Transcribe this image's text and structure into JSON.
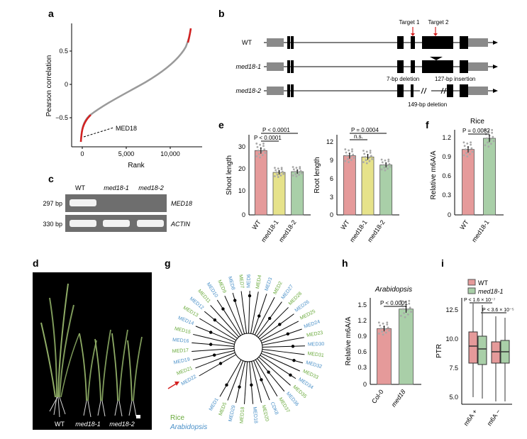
{
  "panels": {
    "a": {
      "label": "a",
      "ylabel": "Pearson correlation",
      "xlabel": "Rank",
      "xticks": [
        "0",
        "5,000",
        "10,000"
      ],
      "yticks": [
        "0.5",
        "0",
        "−0.5"
      ],
      "annotation": "MED18"
    },
    "b": {
      "label": "b",
      "rows": [
        "WT",
        "med18-1",
        "med18-2"
      ],
      "target1": "Target 1",
      "target2": "Target 2",
      "ann_del7": "7-bp deletion",
      "ann_ins127": "127-bp insertion",
      "ann_del149": "149-bp deletion"
    },
    "c": {
      "label": "c",
      "lanes": [
        "WT",
        "med18-1",
        "med18-2"
      ],
      "sizes": [
        "297 bp",
        "330 bp"
      ],
      "genes": [
        "MED18",
        "ACTIN"
      ]
    },
    "d": {
      "label": "d",
      "caption": [
        "WT",
        "med18-1",
        "med18-2"
      ]
    },
    "e": {
      "label": "e",
      "shoot": {
        "ylabel": "Shoot length",
        "yticks": [
          "30",
          "20",
          "10",
          "0"
        ],
        "pvals": [
          "P < 0.0001",
          "P < 0.0001"
        ]
      },
      "root": {
        "ylabel": "Root length",
        "yticks": [
          "12",
          "9",
          "6",
          "3",
          "0"
        ],
        "pvals": [
          "P = 0.0004",
          "n.s."
        ]
      },
      "groups": [
        "WT",
        "med18-1",
        "med18-2"
      ]
    },
    "f": {
      "label": "f",
      "title": "Rice",
      "ylabel": "Relative m6A/A",
      "yticks": [
        "1.2",
        "0.9",
        "0.6",
        "0.3",
        "0"
      ],
      "pval": "P = 0.0082",
      "groups": [
        "WT",
        "med18-1"
      ]
    },
    "g": {
      "label": "g",
      "legend_rice": "Rice",
      "legend_arab": "Arabidopsis",
      "leaf_labels": [
        "MED22",
        "MED21",
        "MED19",
        "MED17",
        "MED16",
        "MED15",
        "MED14",
        "MED13",
        "MED12",
        "MED11",
        "MED10",
        "MED9",
        "MED8",
        "MED7",
        "MED6",
        "MED4",
        "MED3",
        "MED2",
        "MED27",
        "MED28",
        "MED26",
        "MED25",
        "MED24",
        "MED23",
        "MED30",
        "MED31",
        "MED32",
        "MED33",
        "MED34",
        "MED35",
        "MED36",
        "MED37",
        "CDK8",
        "MED20",
        "MED18",
        "MED18",
        "MED29",
        "MED5",
        "MED1"
      ]
    },
    "h": {
      "label": "h",
      "title": "Arabidopsis",
      "ylabel": "Relative m6A/A",
      "yticks": [
        "1.5",
        "1.2",
        "0.9",
        "0.6",
        "0.3",
        "0"
      ],
      "pval": "P < 0.0001",
      "groups": [
        "Col-0",
        "med18"
      ]
    },
    "i": {
      "label": "i",
      "legend": [
        "WT",
        "med18-1"
      ],
      "ylabel": "PTR",
      "yticks": [
        "12.5",
        "10.0",
        "7.5",
        "5.0"
      ],
      "pvals": [
        "P < 1.6 × 10⁻⁷",
        "P < 3.6 × 10⁻⁵"
      ],
      "groups": [
        "m6A +",
        "m6A −"
      ]
    }
  },
  "colors": {
    "wt": "#e59a9a",
    "med18_1": "#e6e28a",
    "med18_2": "#a9cfa8",
    "rice": "#6aaa3c",
    "arabidopsis": "#4a90c8",
    "curve": "#9a9a9a",
    "curve_highlight": "#d42020"
  },
  "chart_data": [
    {
      "panel": "e-shoot",
      "type": "bar",
      "categories": [
        "WT",
        "med18-1",
        "med18-2"
      ],
      "values": [
        26.5,
        17.5,
        17.8
      ],
      "ylabel": "Shoot length",
      "ylim": [
        0,
        33
      ]
    },
    {
      "panel": "e-root",
      "type": "bar",
      "categories": [
        "WT",
        "med18-1",
        "med18-2"
      ],
      "values": [
        9.6,
        9.4,
        8.1
      ],
      "ylabel": "Root length",
      "ylim": [
        0,
        13
      ]
    },
    {
      "panel": "f",
      "type": "bar",
      "categories": [
        "WT",
        "med18-1"
      ],
      "values": [
        1.0,
        1.17
      ],
      "title": "Rice",
      "ylabel": "Relative m6A/A",
      "ylim": [
        0,
        1.3
      ]
    },
    {
      "panel": "h",
      "type": "bar",
      "categories": [
        "Col-0",
        "med18"
      ],
      "values": [
        1.0,
        1.35
      ],
      "title": "Arabidopsis",
      "ylabel": "Relative m6A/A",
      "ylim": [
        0,
        1.55
      ]
    }
  ]
}
